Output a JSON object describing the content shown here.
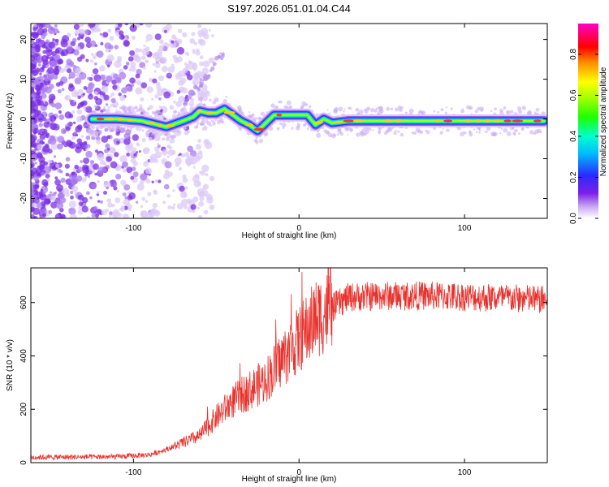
{
  "title": "S197.2026.051.01.04.C44",
  "chart_data": [
    {
      "type": "heatmap",
      "name": "spectrogram",
      "xlabel": "Height of straight line (km)",
      "ylabel": "Frequency (Hz)",
      "xlim": [
        -162,
        150
      ],
      "ylim": [
        -25,
        24
      ],
      "xticks": [
        -100,
        0,
        100
      ],
      "yticks": [
        -20,
        -10,
        0,
        10,
        20
      ],
      "ridge": {
        "x": [
          -125,
          -110,
          -95,
          -80,
          -70,
          -64,
          -60,
          -55,
          -50,
          -45,
          -40,
          -35,
          -30,
          -25,
          -20,
          -15,
          -10,
          -5,
          0,
          5,
          10,
          15,
          20,
          30,
          40,
          60,
          80,
          100,
          120,
          148
        ],
        "y": [
          0,
          0,
          -0.5,
          -2,
          -0.5,
          0.5,
          2,
          1.5,
          1.5,
          2.5,
          1,
          -0.5,
          -1.5,
          -3,
          -1,
          1,
          1,
          1,
          1,
          1,
          -1.5,
          0,
          -1,
          -0.5,
          -0.5,
          -0.5,
          -0.5,
          -0.5,
          -0.5,
          -0.5
        ]
      },
      "colorbar": {
        "label": "Normalized spectral amplitude",
        "range": [
          0,
          0.95
        ],
        "ticks": [
          0.0,
          0.2,
          0.4,
          0.6,
          0.8
        ]
      }
    },
    {
      "type": "line",
      "name": "snr",
      "xlabel": "Height of straight line (km)",
      "ylabel": "SNR (10 * v/v)",
      "xlim": [
        -162,
        150
      ],
      "ylim": [
        0,
        730
      ],
      "xticks": [
        -100,
        0,
        100
      ],
      "yticks": [
        0,
        200,
        400,
        600
      ],
      "color": "#e8322d",
      "trend": {
        "x": [
          -162,
          -110,
          -90,
          -80,
          -70,
          -60,
          -50,
          -40,
          -30,
          -20,
          -10,
          0,
          10,
          20,
          30,
          50,
          80,
          110,
          150
        ],
        "y": [
          20,
          22,
          30,
          50,
          75,
          100,
          170,
          230,
          270,
          310,
          390,
          460,
          540,
          580,
          620,
          625,
          625,
          620,
          610
        ]
      }
    }
  ]
}
